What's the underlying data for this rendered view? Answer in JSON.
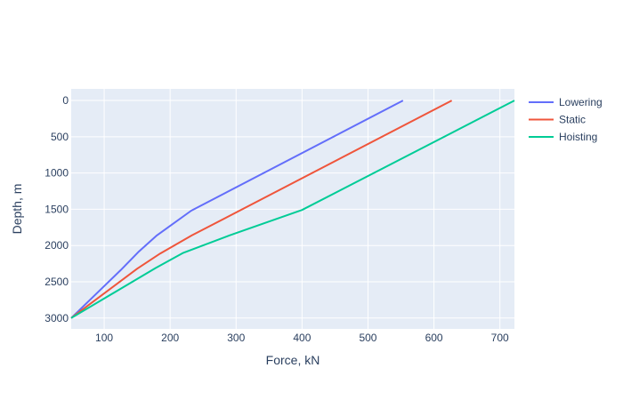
{
  "chart_data": {
    "type": "line",
    "title": "",
    "xlabel": "Force, kN",
    "ylabel": "Depth, m",
    "xlim": [
      50,
      722
    ],
    "ylim": [
      3150,
      -160
    ],
    "y_reversed": true,
    "grid": true,
    "legend_position": "top-right",
    "x_ticks": [
      100,
      200,
      300,
      400,
      500,
      600,
      700
    ],
    "y_ticks": [
      0,
      500,
      1000,
      1500,
      2000,
      2500,
      3000
    ],
    "plot_background": "#e5ecf6",
    "series": [
      {
        "name": "Lowering",
        "color": "#636efa",
        "points": [
          [
            553,
            0
          ],
          [
            232,
            1520
          ],
          [
            180,
            1860
          ],
          [
            153,
            2080
          ],
          [
            125,
            2340
          ],
          [
            50,
            3000
          ]
        ]
      },
      {
        "name": "Static",
        "color": "#ef553b",
        "points": [
          [
            627,
            0
          ],
          [
            233,
            1860
          ],
          [
            185,
            2110
          ],
          [
            150,
            2320
          ],
          [
            50,
            3000
          ]
        ]
      },
      {
        "name": "Hoisting",
        "color": "#00cc96",
        "points": [
          [
            722,
            0
          ],
          [
            400,
            1510
          ],
          [
            290,
            1860
          ],
          [
            220,
            2100
          ],
          [
            178,
            2310
          ],
          [
            50,
            3000
          ]
        ]
      }
    ]
  }
}
